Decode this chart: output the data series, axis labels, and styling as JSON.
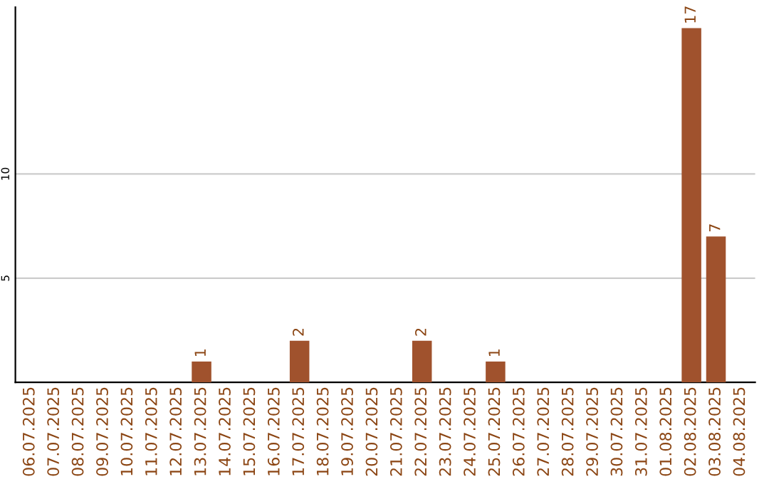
{
  "chart_data": {
    "type": "bar",
    "categories": [
      "06.07.2025",
      "07.07.2025",
      "08.07.2025",
      "09.07.2025",
      "10.07.2025",
      "11.07.2025",
      "12.07.2025",
      "13.07.2025",
      "14.07.2025",
      "15.07.2025",
      "16.07.2025",
      "17.07.2025",
      "18.07.2025",
      "19.07.2025",
      "20.07.2025",
      "21.07.2025",
      "22.07.2025",
      "23.07.2025",
      "24.07.2025",
      "25.07.2025",
      "26.07.2025",
      "27.07.2025",
      "28.07.2025",
      "29.07.2025",
      "30.07.2025",
      "31.07.2025",
      "01.08.2025",
      "02.08.2025",
      "03.08.2025",
      "04.08.2025"
    ],
    "values": [
      0,
      0,
      0,
      0,
      0,
      0,
      0,
      1,
      0,
      0,
      0,
      2,
      0,
      0,
      0,
      0,
      2,
      0,
      0,
      1,
      0,
      0,
      0,
      0,
      0,
      0,
      0,
      17,
      7,
      0
    ],
    "color": "#a0522d",
    "value_labels": [
      null,
      null,
      null,
      null,
      null,
      null,
      null,
      "1",
      null,
      null,
      null,
      "2",
      null,
      null,
      null,
      null,
      "2",
      null,
      null,
      "1",
      null,
      null,
      null,
      null,
      null,
      null,
      null,
      "17",
      "7",
      null
    ],
    "ylim": [
      0,
      18
    ],
    "yticks": [
      5,
      10
    ],
    "grid": "y"
  }
}
